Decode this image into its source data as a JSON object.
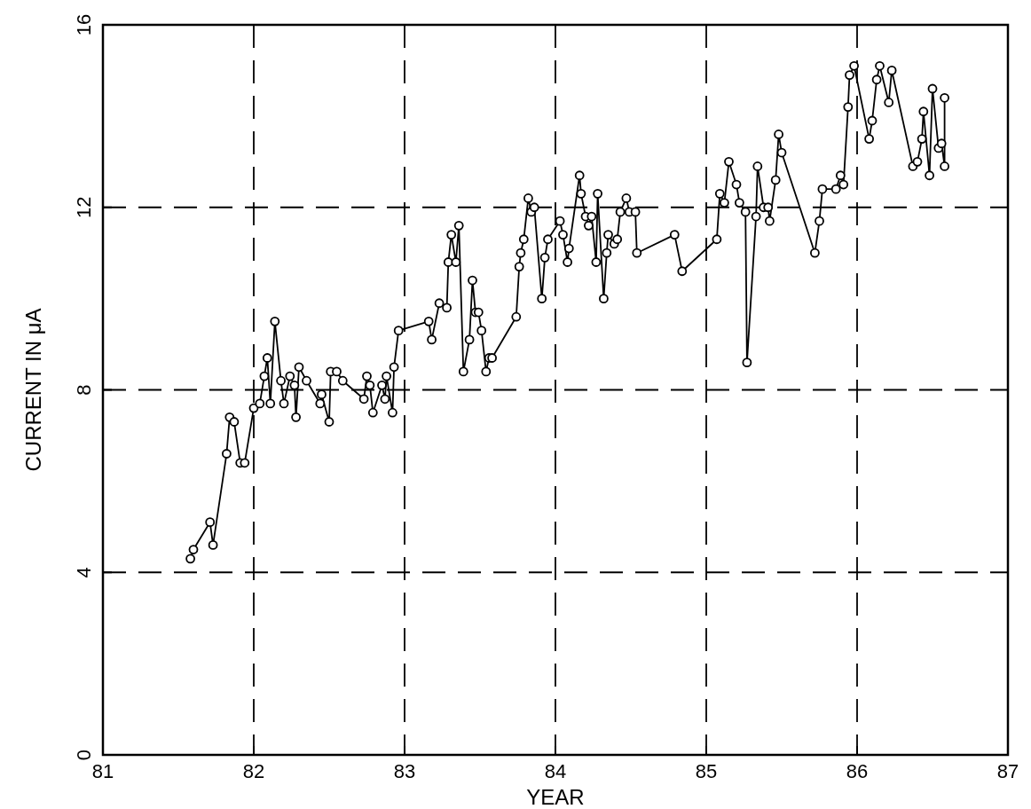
{
  "chart_data": {
    "type": "line",
    "xlabel": "YEAR",
    "ylabel": "CURRENT IN μA",
    "xlim": [
      81,
      87
    ],
    "xticks": [
      81,
      82,
      83,
      84,
      85,
      86,
      87
    ],
    "ylim": [
      0,
      16
    ],
    "yticks": [
      0,
      4,
      8,
      12,
      16
    ],
    "grid": true,
    "marker": "circle",
    "line_style": "solid",
    "series": [
      {
        "color": "#000000",
        "x": [
          81.58,
          81.6,
          81.71,
          81.73,
          81.82,
          81.84,
          81.87,
          81.91,
          81.94,
          82.0,
          82.04,
          82.07,
          82.09,
          82.11,
          82.14,
          82.18,
          82.2,
          82.24,
          82.27,
          82.28,
          82.3,
          82.35,
          82.44,
          82.45,
          82.5,
          82.51,
          82.55,
          82.59,
          82.73,
          82.75,
          82.77,
          82.79,
          82.85,
          82.87,
          82.88,
          82.92,
          82.93,
          82.96,
          83.16,
          83.18,
          83.23,
          83.28,
          83.29,
          83.31,
          83.34,
          83.36,
          83.39,
          83.43,
          83.45,
          83.47,
          83.49,
          83.51,
          83.54,
          83.56,
          83.58,
          83.74,
          83.76,
          83.77,
          83.79,
          83.82,
          83.84,
          83.86,
          83.91,
          83.93,
          83.95,
          84.03,
          84.05,
          84.08,
          84.09,
          84.16,
          84.17,
          84.2,
          84.22,
          84.24,
          84.27,
          84.28,
          84.32,
          84.34,
          84.35,
          84.39,
          84.41,
          84.43,
          84.47,
          84.49,
          84.53,
          84.54,
          84.79,
          84.84,
          85.07,
          85.09,
          85.12,
          85.15,
          85.2,
          85.22,
          85.26,
          85.27,
          85.33,
          85.34,
          85.38,
          85.41,
          85.42,
          85.46,
          85.48,
          85.5,
          85.72,
          85.75,
          85.77,
          85.86,
          85.89,
          85.91,
          85.94,
          85.95,
          85.98,
          86.08,
          86.1,
          86.13,
          86.15,
          86.21,
          86.23,
          86.37,
          86.4,
          86.43,
          86.44,
          86.48,
          86.5,
          86.54,
          86.56,
          86.58,
          86.58
        ],
        "values": [
          4.3,
          4.5,
          5.1,
          4.6,
          6.6,
          7.4,
          7.3,
          6.4,
          6.4,
          7.6,
          7.7,
          8.3,
          8.7,
          7.7,
          9.5,
          8.2,
          7.7,
          8.3,
          8.1,
          7.4,
          8.5,
          8.2,
          7.7,
          7.9,
          7.3,
          8.4,
          8.4,
          8.2,
          7.8,
          8.3,
          8.1,
          7.5,
          8.1,
          7.8,
          8.3,
          7.5,
          8.5,
          9.3,
          9.5,
          9.1,
          9.9,
          9.8,
          10.8,
          11.4,
          10.8,
          11.6,
          8.4,
          9.1,
          10.4,
          9.7,
          9.7,
          9.3,
          8.4,
          8.7,
          8.7,
          9.6,
          10.7,
          11.0,
          11.3,
          12.2,
          11.9,
          12.0,
          10.0,
          10.9,
          11.3,
          11.7,
          11.4,
          10.8,
          11.1,
          12.7,
          12.3,
          11.8,
          11.6,
          11.8,
          10.8,
          12.3,
          10.0,
          11.0,
          11.4,
          11.2,
          11.3,
          11.9,
          12.2,
          11.9,
          11.9,
          11.0,
          11.4,
          10.6,
          11.3,
          12.3,
          12.1,
          13.0,
          12.5,
          12.1,
          11.9,
          8.6,
          11.8,
          12.9,
          12.0,
          12.0,
          11.7,
          12.6,
          13.6,
          13.2,
          11.0,
          11.7,
          12.4,
          12.4,
          12.7,
          12.5,
          14.2,
          14.9,
          15.1,
          13.5,
          13.9,
          14.8,
          15.1,
          14.3,
          15.0,
          12.9,
          13.0,
          13.5,
          14.1,
          12.7,
          14.6,
          13.3,
          13.4,
          12.9,
          14.4
        ]
      }
    ]
  }
}
